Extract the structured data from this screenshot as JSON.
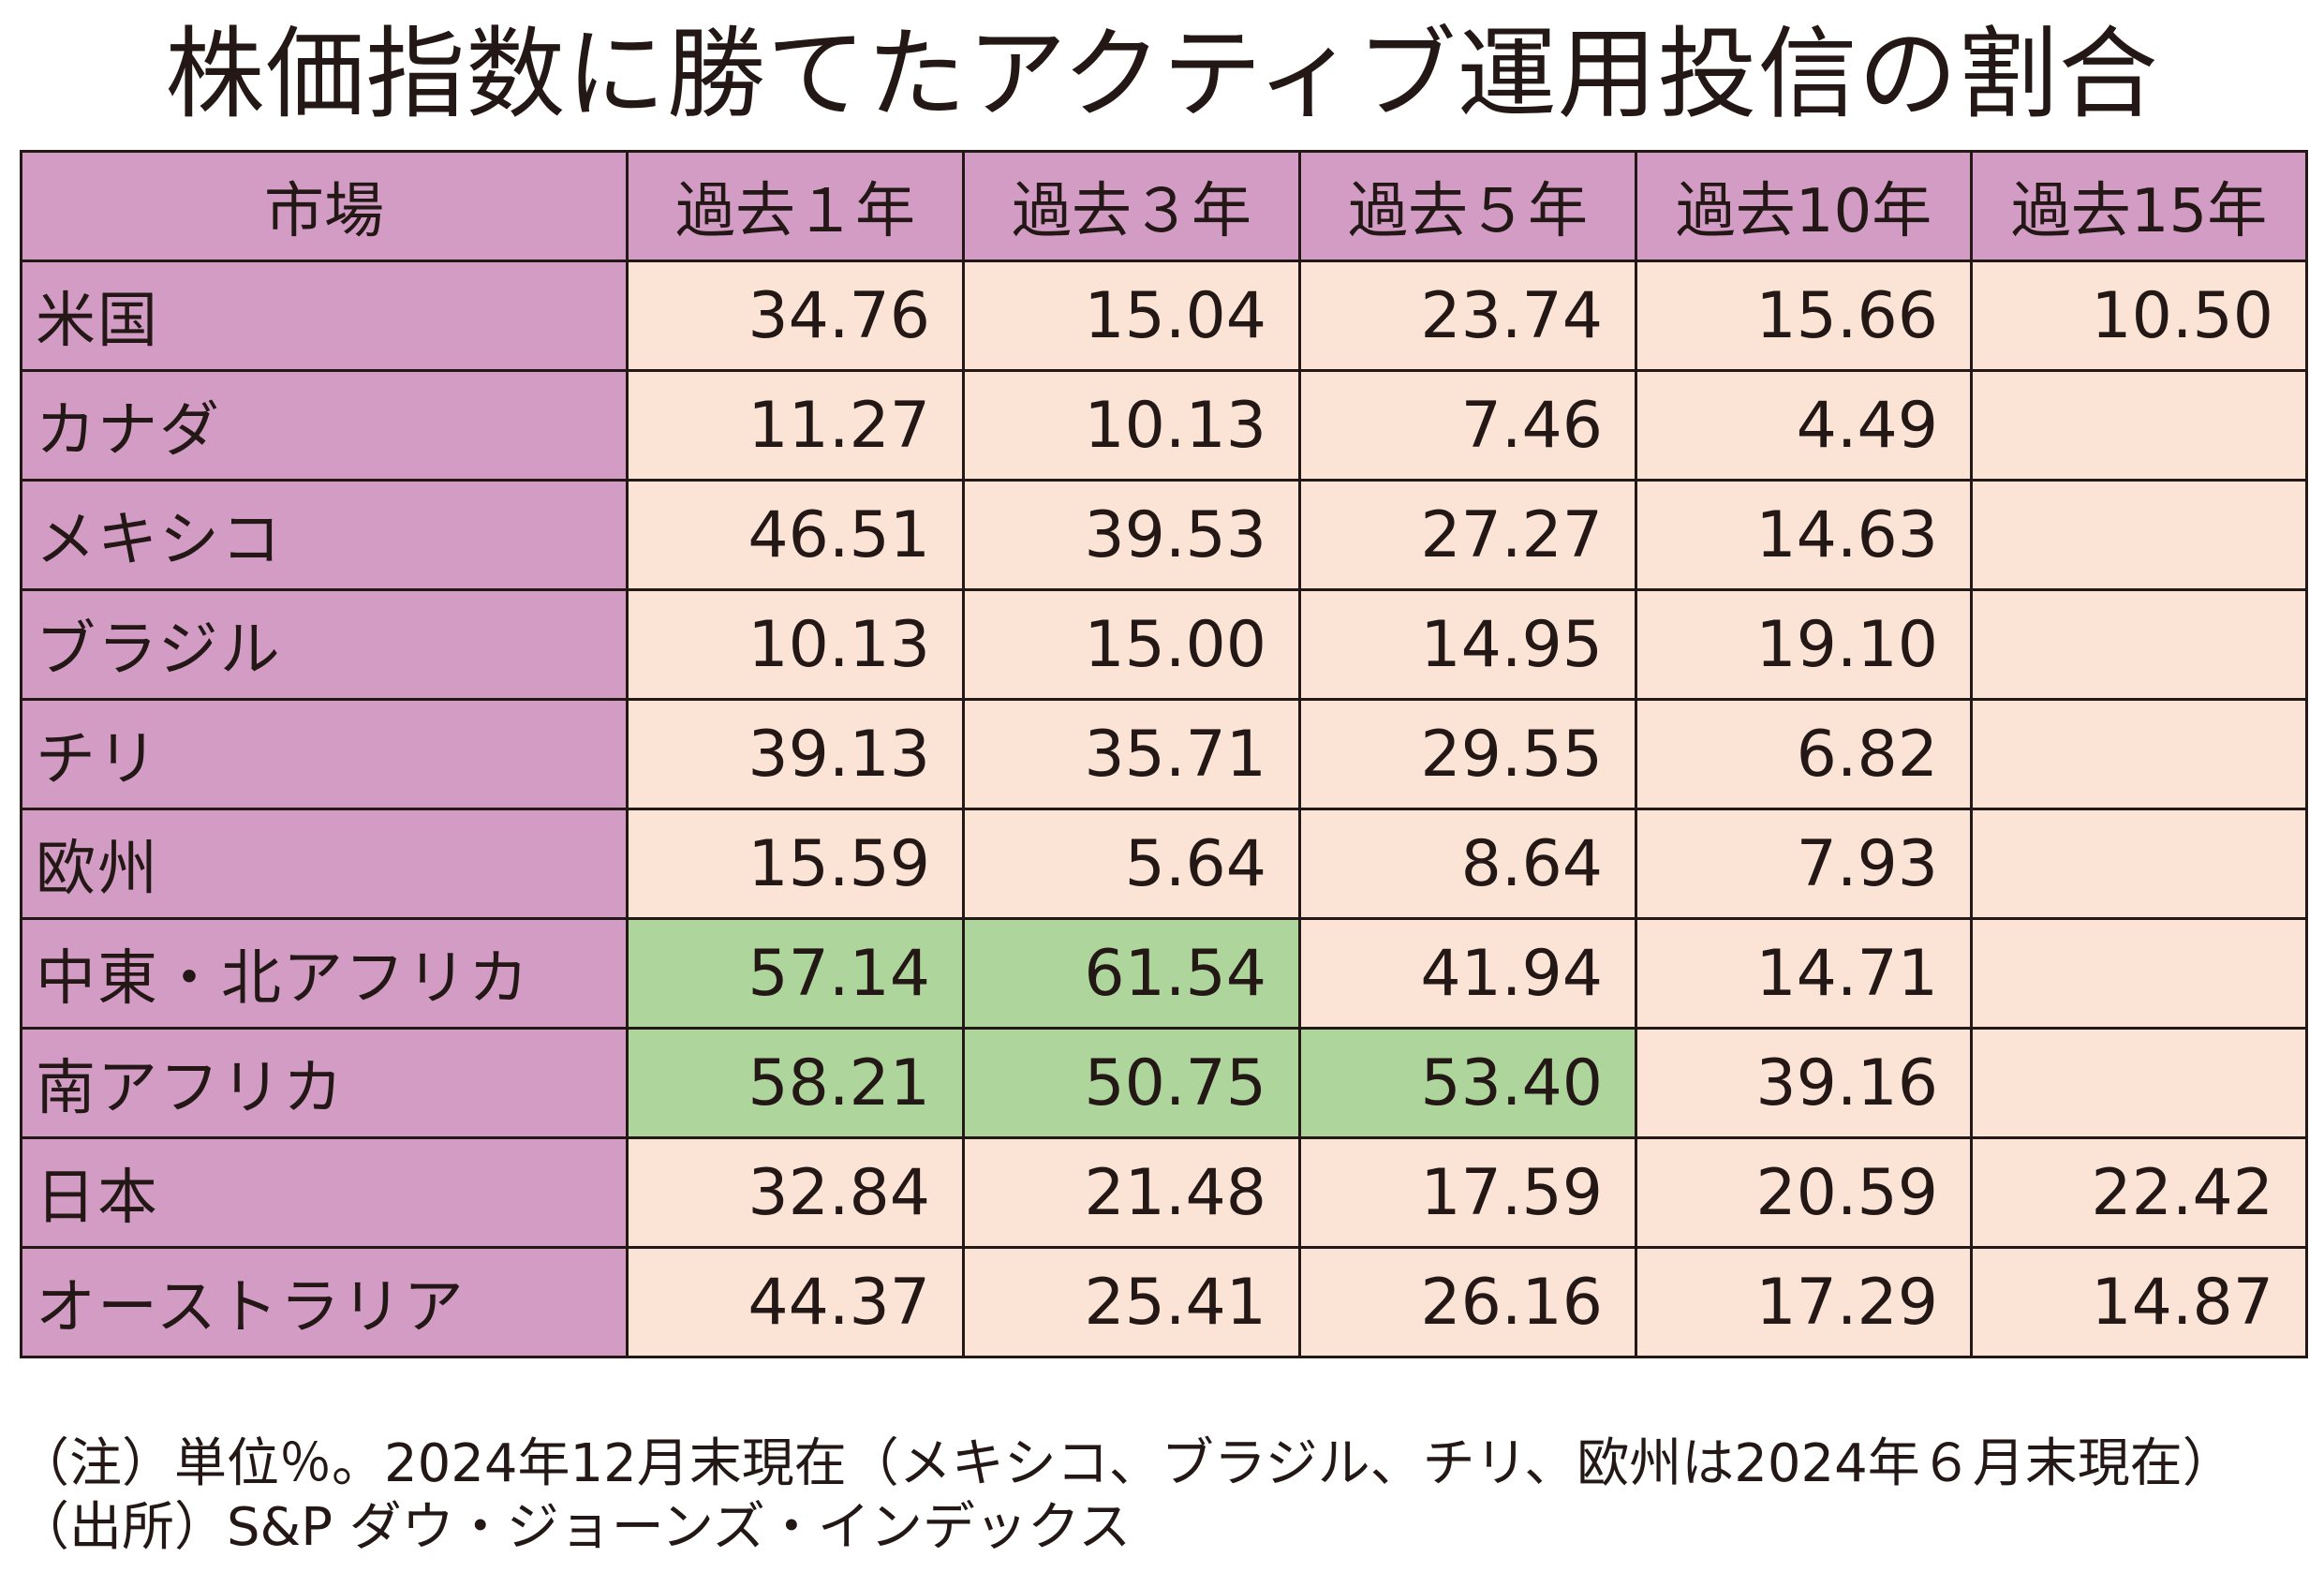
{
  "chart_data": {
    "type": "table",
    "title": "株価指数に勝てたアクティブ運用投信の割合",
    "columns": [
      "市場",
      "過去１年",
      "過去３年",
      "過去５年",
      "過去10年",
      "過去15年"
    ],
    "rows": [
      {
        "market": "米国",
        "values": [
          "34.76",
          "15.04",
          "23.74",
          "15.66",
          "10.50"
        ]
      },
      {
        "market": "カナダ",
        "values": [
          "11.27",
          "10.13",
          "7.46",
          "4.49",
          ""
        ]
      },
      {
        "market": "メキシコ",
        "values": [
          "46.51",
          "39.53",
          "27.27",
          "14.63",
          ""
        ]
      },
      {
        "market": "ブラジル",
        "values": [
          "10.13",
          "15.00",
          "14.95",
          "19.10",
          ""
        ]
      },
      {
        "market": "チリ",
        "values": [
          "39.13",
          "35.71",
          "29.55",
          "6.82",
          ""
        ]
      },
      {
        "market": "欧州",
        "values": [
          "15.59",
          "5.64",
          "8.64",
          "7.93",
          ""
        ]
      },
      {
        "market": "中東・北アフリカ",
        "values": [
          "57.14",
          "61.54",
          "41.94",
          "14.71",
          ""
        ]
      },
      {
        "market": "南アフリカ",
        "values": [
          "58.21",
          "50.75",
          "53.40",
          "39.16",
          ""
        ]
      },
      {
        "market": "日本",
        "values": [
          "32.84",
          "21.48",
          "17.59",
          "20.59",
          "22.42"
        ]
      },
      {
        "market": "オーストラリア",
        "values": [
          "44.37",
          "25.41",
          "26.16",
          "17.29",
          "14.87"
        ]
      }
    ],
    "highlighted_cells": [
      [
        6,
        0
      ],
      [
        6,
        1
      ],
      [
        7,
        0
      ],
      [
        7,
        1
      ],
      [
        7,
        2
      ]
    ],
    "unit": "%"
  },
  "notes": {
    "line1": "（注）単位％。2024年12月末現在（メキシコ、ブラジル、チリ、欧州は2024年６月末現在）",
    "line2": "（出所）S&P ダウ・ジョーンズ・インデックス"
  },
  "colors": {
    "header_bg": "#d39cc5",
    "cell_bg": "#fbe4d6",
    "highlight_bg": "#aed69c",
    "text": "#231815",
    "border": "#231815"
  }
}
